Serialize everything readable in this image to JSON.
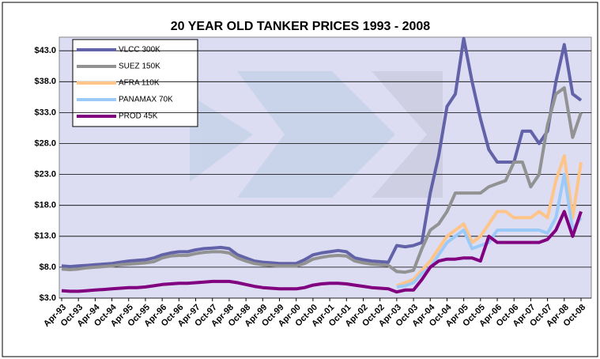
{
  "chart_data": {
    "type": "line",
    "title": "20 YEAR OLD TANKER PRICES 1993 - 2008",
    "categories": [
      "Apr-93",
      null,
      "Oct-93",
      null,
      "Apr-94",
      null,
      "Oct-94",
      null,
      "Apr-95",
      null,
      "Oct-95",
      null,
      "Apr-96",
      null,
      "Oct-96",
      null,
      "Apr-97",
      null,
      "Oct-97",
      null,
      "Apr-98",
      null,
      "Oct-98",
      null,
      "Apr-99",
      null,
      "Oct-99",
      null,
      "Apr-00",
      null,
      "Oct-00",
      null,
      "Apr-01",
      null,
      "Oct-01",
      null,
      "Apr-02",
      null,
      "Oct-02",
      null,
      "Apr-03",
      null,
      "Oct-03",
      null,
      "Apr-04",
      null,
      "Oct-04",
      null,
      "Apr-05",
      null,
      "Oct-05",
      null,
      "Apr-06",
      null,
      "Oct-06",
      null,
      "Apr-07",
      null,
      "Oct-07",
      null,
      "Apr-08",
      null,
      "Oct-08"
    ],
    "series": [
      {
        "name": "VLCC 300K",
        "color": "#6262a8",
        "values": [
          8.2,
          8.1,
          8.2,
          8.3,
          8.4,
          8.5,
          8.6,
          8.8,
          9,
          9.1,
          9.2,
          9.5,
          10,
          10.3,
          10.5,
          10.5,
          10.8,
          11,
          11.1,
          11.2,
          11,
          10,
          9.5,
          9,
          8.8,
          8.7,
          8.6,
          8.6,
          8.6,
          9.2,
          10,
          10.3,
          10.5,
          10.7,
          10.5,
          9.5,
          9.2,
          9,
          8.9,
          8.8,
          11.5,
          11.3,
          11.5,
          12,
          20,
          26,
          34,
          36,
          45,
          38,
          32,
          27,
          25,
          25,
          25,
          30,
          30,
          28,
          30,
          38,
          44,
          36,
          35
        ]
      },
      {
        "name": "SUEZ 150K",
        "color": "#929292",
        "values": [
          7.7,
          7.6,
          7.7,
          7.9,
          8,
          8.1,
          8.2,
          8.4,
          8.5,
          8.6,
          8.7,
          8.9,
          9.5,
          9.8,
          9.9,
          9.9,
          10.2,
          10.4,
          10.5,
          10.5,
          10.3,
          9.5,
          9,
          8.6,
          8.4,
          8.3,
          8.2,
          8.2,
          8.2,
          8.6,
          9.3,
          9.6,
          9.8,
          9.9,
          9.8,
          9,
          8.7,
          8.5,
          8.4,
          8.3,
          7.3,
          7.2,
          7.5,
          11,
          14,
          15,
          17,
          20,
          20,
          20,
          20,
          21,
          21.5,
          22,
          25,
          25,
          21,
          23,
          31,
          36,
          37,
          29,
          33
        ]
      },
      {
        "name": "AFRA 110K",
        "color": "#ffc488",
        "values": [
          null,
          null,
          null,
          null,
          null,
          null,
          null,
          null,
          null,
          null,
          null,
          null,
          null,
          null,
          null,
          null,
          null,
          null,
          null,
          null,
          null,
          null,
          null,
          null,
          null,
          null,
          null,
          null,
          null,
          null,
          null,
          null,
          null,
          null,
          null,
          null,
          null,
          null,
          null,
          null,
          5,
          5.5,
          6,
          7.5,
          9,
          11,
          13,
          14,
          15,
          12,
          13,
          15,
          17,
          17,
          16,
          16,
          16,
          17,
          16,
          22,
          26,
          16,
          25
        ]
      },
      {
        "name": "PANAMAX 70K",
        "color": "#9ccaf8",
        "values": [
          null,
          null,
          null,
          null,
          null,
          null,
          null,
          null,
          null,
          null,
          null,
          null,
          null,
          null,
          null,
          null,
          null,
          null,
          null,
          null,
          null,
          null,
          null,
          null,
          null,
          null,
          null,
          null,
          null,
          null,
          null,
          null,
          null,
          null,
          null,
          null,
          null,
          null,
          null,
          null,
          4.8,
          5,
          5.5,
          7,
          8,
          10,
          12,
          13,
          14,
          11,
          11.5,
          12,
          14,
          14,
          14,
          14,
          14,
          14,
          13.5,
          16,
          23,
          14,
          16
        ]
      },
      {
        "name": "PROD 45K",
        "color": "#800080",
        "values": [
          4.2,
          4.1,
          4.1,
          4.2,
          4.3,
          4.4,
          4.5,
          4.6,
          4.7,
          4.7,
          4.8,
          5,
          5.2,
          5.3,
          5.4,
          5.4,
          5.5,
          5.6,
          5.7,
          5.7,
          5.7,
          5.5,
          5.2,
          4.9,
          4.7,
          4.6,
          4.5,
          4.5,
          4.5,
          4.7,
          5.1,
          5.3,
          5.4,
          5.4,
          5.3,
          5.1,
          4.9,
          4.7,
          4.6,
          4.5,
          4,
          4.3,
          4.3,
          6,
          8,
          9,
          9.3,
          9.3,
          9.5,
          9.5,
          9,
          13,
          12,
          12,
          12,
          12,
          12,
          12,
          12.5,
          14,
          17,
          13,
          17
        ]
      }
    ],
    "ylim": [
      3,
      45.2
    ],
    "yticks": [
      {
        "value": 3,
        "label": "$3.0"
      },
      {
        "value": 8,
        "label": "$8.0"
      },
      {
        "value": 13,
        "label": "$13.0"
      },
      {
        "value": 18,
        "label": "$18.0"
      },
      {
        "value": 23,
        "label": "$23.0"
      },
      {
        "value": 28,
        "label": "$28.0"
      },
      {
        "value": 33,
        "label": "$33.0"
      },
      {
        "value": 38,
        "label": "$38.0"
      },
      {
        "value": 43,
        "label": "$43.0"
      }
    ],
    "grid": true,
    "legend": "upper left"
  }
}
